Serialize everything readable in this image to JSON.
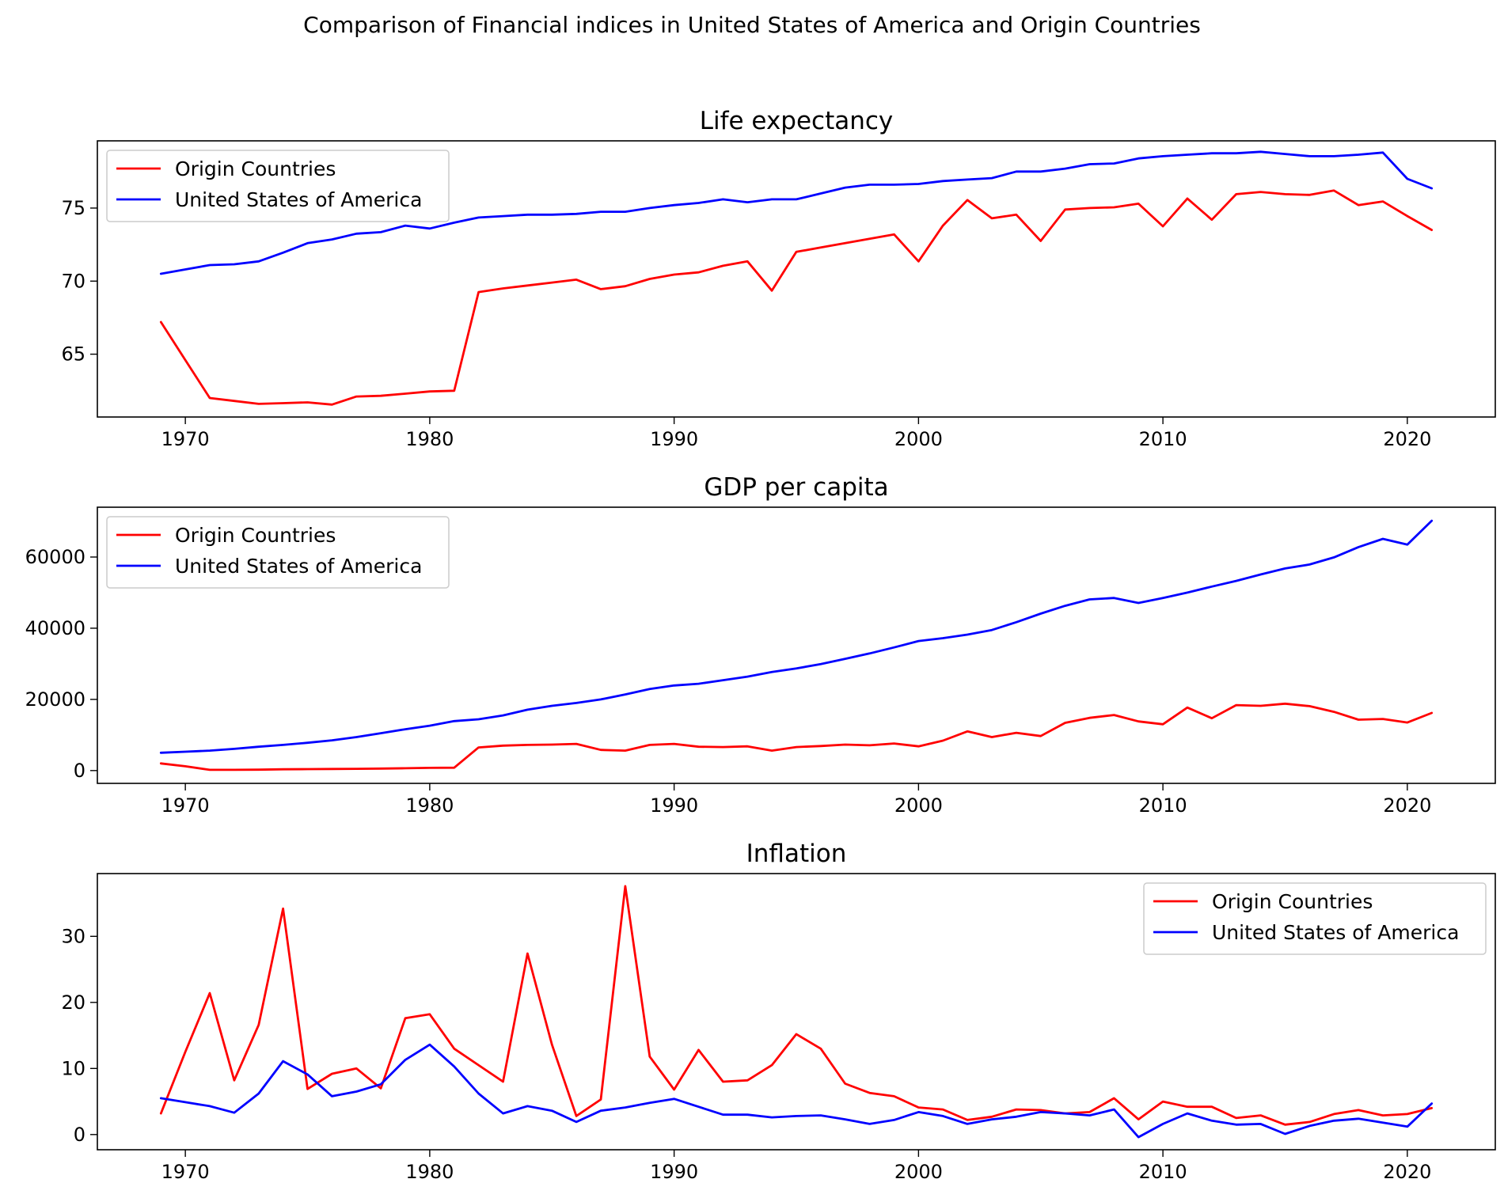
{
  "figure": {
    "title": "Comparison of Financial indices in United States of America and Origin Countries"
  },
  "chart_data": [
    {
      "type": "line",
      "title": "Life expectancy",
      "xlabel": "",
      "ylabel": "",
      "xlim": [
        1966.4,
        1923.6
      ],
      "ylim": [
        60.7,
        79.6
      ],
      "xticks": [
        1970,
        1980,
        1990,
        2000,
        2010,
        2020
      ],
      "xtick_labels": [
        "1970",
        "1980",
        "1990",
        "2000",
        "2010",
        "2020"
      ],
      "yticks": [
        65,
        70,
        75
      ],
      "ytick_labels": [
        "65",
        "70",
        "75"
      ],
      "grid": false,
      "legend": "top-left",
      "x": [
        1969,
        1970,
        1971,
        1972,
        1973,
        1974,
        1975,
        1976,
        1977,
        1978,
        1979,
        1980,
        1981,
        1982,
        1983,
        1984,
        1985,
        1986,
        1987,
        1988,
        1989,
        1990,
        1991,
        1992,
        1993,
        1994,
        1995,
        1996,
        1997,
        1998,
        1999,
        2000,
        2001,
        2002,
        2003,
        2004,
        2005,
        2006,
        2007,
        2008,
        2009,
        2010,
        2011,
        2012,
        2013,
        2014,
        2015,
        2016,
        2017,
        2018,
        2019,
        2020,
        2021
      ],
      "series": [
        {
          "name": "Origin Countries",
          "color": "#ff0000",
          "values": [
            67.2,
            64.6,
            62.0,
            61.8,
            61.6,
            61.65,
            61.7,
            61.55,
            62.1,
            62.15,
            62.3,
            62.45,
            62.5,
            69.25,
            69.5,
            69.7,
            69.9,
            70.1,
            69.45,
            69.65,
            70.15,
            70.45,
            70.6,
            71.05,
            71.35,
            69.35,
            72.0,
            72.3,
            72.6,
            72.9,
            73.2,
            71.35,
            73.8,
            75.55,
            74.3,
            74.55,
            72.75,
            74.9,
            75.0,
            75.05,
            75.3,
            73.75,
            75.65,
            74.2,
            75.95,
            76.1,
            75.95,
            75.9,
            76.2,
            75.2,
            75.45,
            74.45,
            73.5
          ]
        },
        {
          "name": "United States of America",
          "color": "#0000ff",
          "values": [
            70.5,
            70.8,
            71.1,
            71.15,
            71.35,
            71.95,
            72.6,
            72.85,
            73.25,
            73.35,
            73.8,
            73.6,
            74.0,
            74.35,
            74.45,
            74.55,
            74.55,
            74.6,
            74.75,
            74.75,
            75.0,
            75.2,
            75.35,
            75.6,
            75.4,
            75.6,
            75.6,
            76.0,
            76.4,
            76.6,
            76.6,
            76.65,
            76.85,
            76.95,
            77.05,
            77.5,
            77.5,
            77.7,
            78.0,
            78.05,
            78.4,
            78.55,
            78.65,
            78.75,
            78.75,
            78.85,
            78.7,
            78.55,
            78.55,
            78.65,
            78.8,
            77.0,
            76.35
          ]
        }
      ]
    },
    {
      "type": "line",
      "title": "GDP per capita",
      "xlabel": "",
      "ylabel": "",
      "xlim": [
        1966.4,
        1923.6
      ],
      "ylim": [
        -3600,
        74000
      ],
      "xticks": [
        1970,
        1980,
        1990,
        2000,
        2010,
        2020
      ],
      "xtick_labels": [
        "1970",
        "1980",
        "1990",
        "2000",
        "2010",
        "2020"
      ],
      "yticks": [
        0,
        20000,
        40000,
        60000
      ],
      "ytick_labels": [
        "0",
        "20000",
        "40000",
        "60000"
      ],
      "grid": false,
      "legend": "top-left",
      "x": [
        1969,
        1970,
        1971,
        1972,
        1973,
        1974,
        1975,
        1976,
        1977,
        1978,
        1979,
        1980,
        1981,
        1982,
        1983,
        1984,
        1985,
        1986,
        1987,
        1988,
        1989,
        1990,
        1991,
        1992,
        1993,
        1994,
        1995,
        1996,
        1997,
        1998,
        1999,
        2000,
        2001,
        2002,
        2003,
        2004,
        2005,
        2006,
        2007,
        2008,
        2009,
        2010,
        2011,
        2012,
        2013,
        2014,
        2015,
        2016,
        2017,
        2018,
        2019,
        2020,
        2021
      ],
      "series": [
        {
          "name": "Origin Countries",
          "color": "#ff0000",
          "values": [
            2000,
            1200,
            200,
            200,
            250,
            350,
            400,
            450,
            500,
            550,
            650,
            750,
            800,
            6500,
            7000,
            7200,
            7300,
            7500,
            5800,
            5600,
            7200,
            7500,
            6700,
            6600,
            6800,
            5600,
            6600,
            6900,
            7300,
            7100,
            7600,
            6800,
            8400,
            11000,
            9400,
            10600,
            9700,
            13400,
            14800,
            15600,
            13800,
            13000,
            17700,
            14700,
            18400,
            18200,
            18800,
            18100,
            16500,
            14300,
            14500,
            13500,
            16200
          ]
        },
        {
          "name": "United States of America",
          "color": "#0000ff",
          "values": [
            5000,
            5300,
            5600,
            6100,
            6700,
            7200,
            7800,
            8500,
            9400,
            10500,
            11600,
            12600,
            13900,
            14400,
            15500,
            17100,
            18200,
            19000,
            20000,
            21400,
            22900,
            23900,
            24400,
            25400,
            26400,
            27700,
            28700,
            29900,
            31400,
            32900,
            34600,
            36400,
            37200,
            38200,
            39500,
            41700,
            44100,
            46300,
            48100,
            48500,
            47100,
            48500,
            50000,
            51700,
            53300,
            55100,
            56800,
            57900,
            59900,
            62800,
            65100,
            63500,
            70200
          ]
        }
      ]
    },
    {
      "type": "line",
      "title": "Inflation",
      "xlabel": "",
      "ylabel": "",
      "xlim": [
        1966.4,
        1923.6
      ],
      "ylim": [
        -2.3,
        39.5
      ],
      "xticks": [
        1970,
        1980,
        1990,
        2000,
        2010,
        2020
      ],
      "xtick_labels": [
        "1970",
        "1980",
        "1990",
        "2000",
        "2010",
        "2020"
      ],
      "yticks": [
        0,
        10,
        20,
        30
      ],
      "ytick_labels": [
        "0",
        "10",
        "20",
        "30"
      ],
      "grid": false,
      "legend": "top-right",
      "x": [
        1969,
        1970,
        1971,
        1972,
        1973,
        1974,
        1975,
        1976,
        1977,
        1978,
        1979,
        1980,
        1981,
        1982,
        1983,
        1984,
        1985,
        1986,
        1987,
        1988,
        1989,
        1990,
        1991,
        1992,
        1993,
        1994,
        1995,
        1996,
        1997,
        1998,
        1999,
        2000,
        2001,
        2002,
        2003,
        2004,
        2005,
        2006,
        2007,
        2008,
        2009,
        2010,
        2011,
        2012,
        2013,
        2014,
        2015,
        2016,
        2017,
        2018,
        2019,
        2020,
        2021
      ],
      "series": [
        {
          "name": "Origin Countries",
          "color": "#ff0000",
          "values": [
            3.2,
            12.5,
            21.4,
            8.2,
            16.6,
            34.2,
            6.9,
            9.2,
            10.0,
            7.0,
            17.6,
            18.2,
            13.0,
            10.5,
            8.0,
            27.4,
            13.6,
            2.8,
            5.3,
            37.6,
            11.8,
            6.8,
            12.8,
            8.0,
            8.2,
            10.5,
            15.2,
            13.0,
            7.7,
            6.3,
            5.8,
            4.1,
            3.8,
            2.2,
            2.7,
            3.8,
            3.7,
            3.2,
            3.4,
            5.5,
            2.3,
            5.0,
            4.2,
            4.2,
            2.5,
            2.9,
            1.5,
            1.9,
            3.1,
            3.7,
            2.9,
            3.1,
            4.0
          ]
        },
        {
          "name": "United States of America",
          "color": "#0000ff",
          "values": [
            5.5,
            4.9,
            4.3,
            3.3,
            6.2,
            11.1,
            9.1,
            5.8,
            6.5,
            7.6,
            11.3,
            13.6,
            10.3,
            6.2,
            3.2,
            4.3,
            3.6,
            1.9,
            3.6,
            4.1,
            4.8,
            5.4,
            4.2,
            3.0,
            3.0,
            2.6,
            2.8,
            2.9,
            2.3,
            1.6,
            2.2,
            3.4,
            2.8,
            1.6,
            2.3,
            2.7,
            3.4,
            3.2,
            2.9,
            3.8,
            -0.4,
            1.6,
            3.2,
            2.1,
            1.5,
            1.6,
            0.1,
            1.3,
            2.1,
            2.4,
            1.8,
            1.2,
            4.7
          ]
        }
      ]
    }
  ]
}
